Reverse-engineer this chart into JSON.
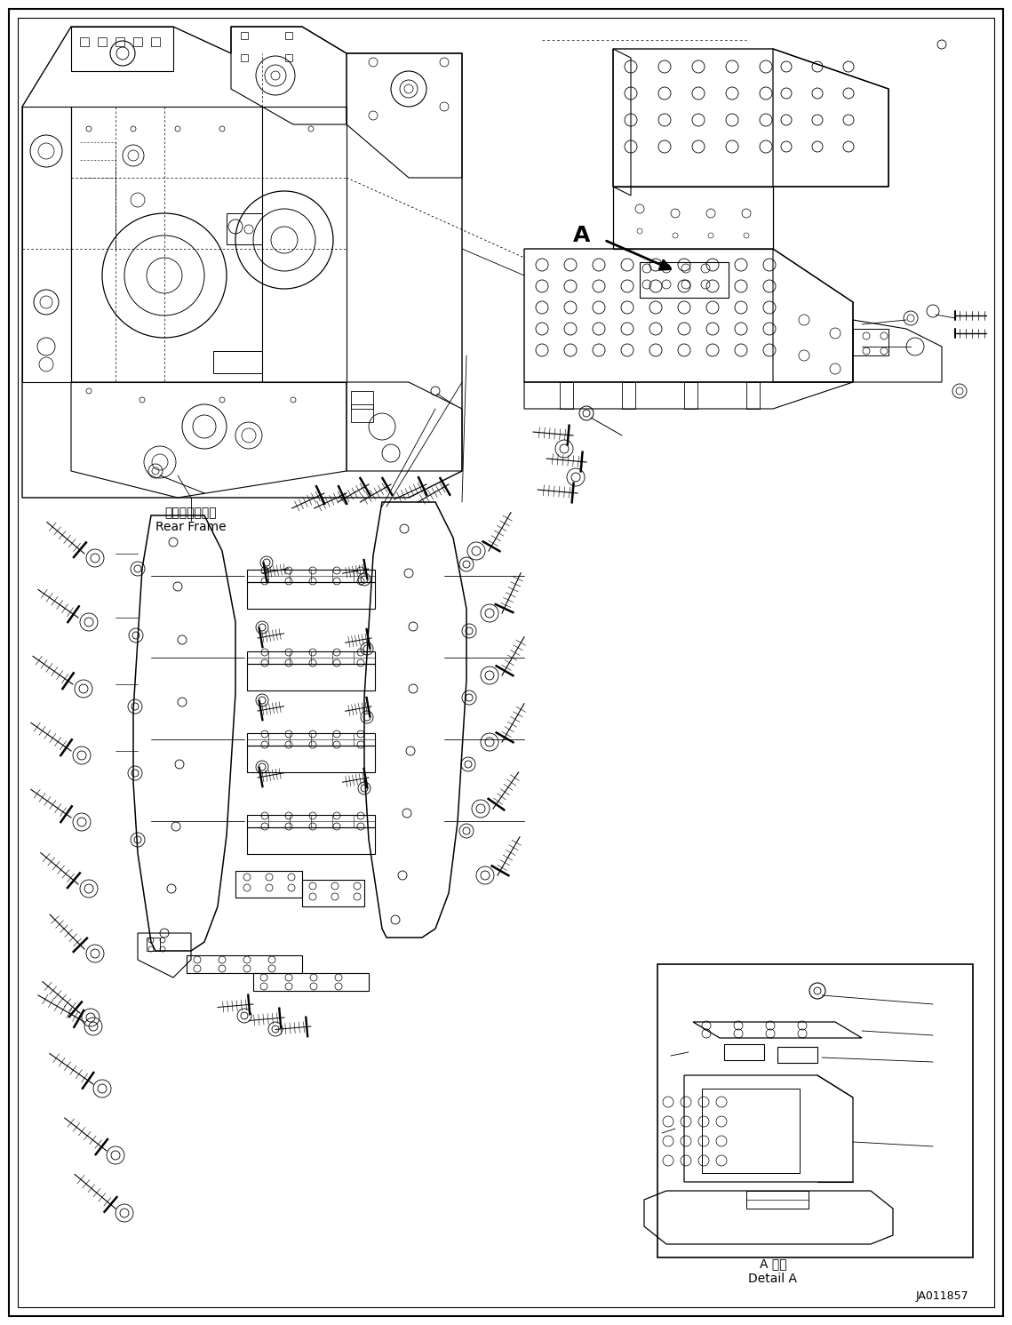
{
  "figsize": [
    11.39,
    14.91
  ],
  "dpi": 100,
  "bg_color": "#ffffff",
  "text_rear_frame_jp": "リヤーフレーム",
  "text_rear_frame_en": "Rear Frame",
  "text_detail_jp": "A 詳細",
  "text_detail_en": "Detail A",
  "text_id": "JA011857"
}
